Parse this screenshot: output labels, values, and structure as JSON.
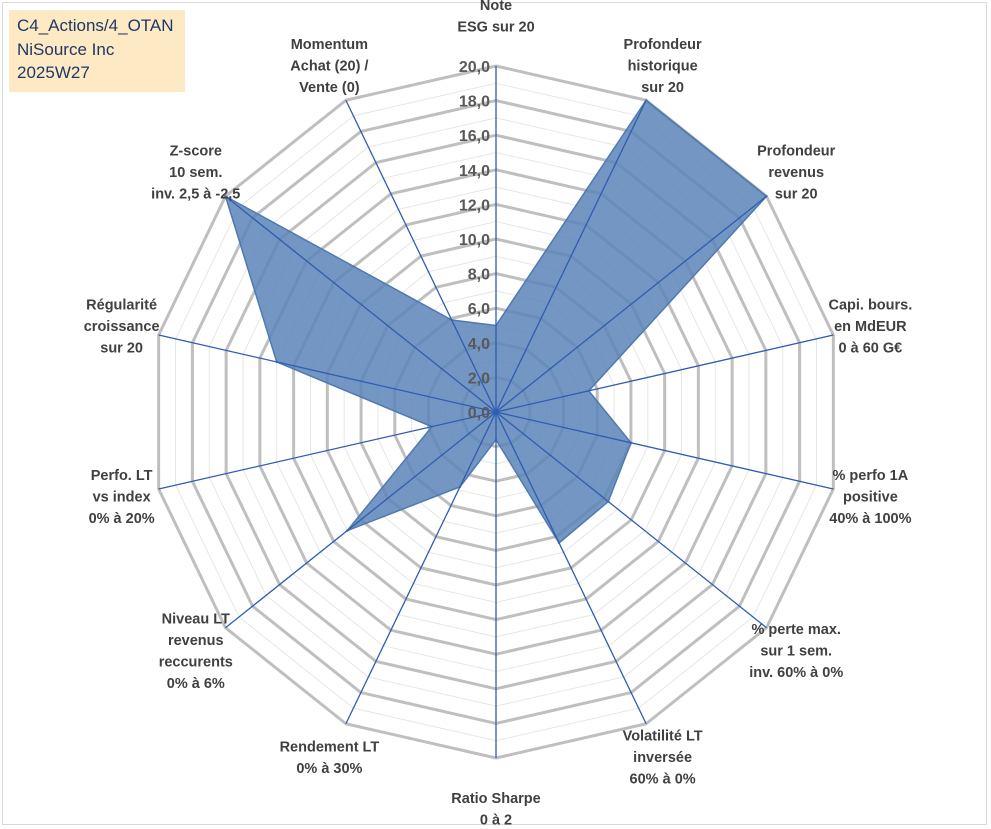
{
  "info_box": {
    "line1": "C4_Actions/4_OTAN",
    "line2": "NiSource Inc",
    "line3": "2025W27"
  },
  "colors": {
    "series_fill": "#5b84b8",
    "series_stroke": "#4f7ab0",
    "spokes": "#2f5db0",
    "grid_major": "#bfbfbf",
    "grid_minor": "#e6e6e6",
    "info_bg": "#fde9c4",
    "info_text": "#1f3864"
  },
  "chart_data": {
    "type": "radar",
    "title": "",
    "rmin": 0,
    "rmax": 20,
    "major_step": 2,
    "minor_step": 1,
    "tick_labels": [
      "0,0",
      "2,0",
      "4,0",
      "6,0",
      "8,0",
      "10,0",
      "12,0",
      "14,0",
      "16,0",
      "18,0",
      "20,0"
    ],
    "grid": true,
    "legend": "none",
    "axes": [
      {
        "label": [
          "Note",
          "ESG sur 20"
        ]
      },
      {
        "label": [
          "Profondeur",
          "historique",
          "sur 20"
        ]
      },
      {
        "label": [
          "Profondeur",
          "revenus",
          "sur 20"
        ]
      },
      {
        "label": [
          "Capi. bours.",
          "en MdEUR",
          "0 à 60 G€"
        ]
      },
      {
        "label": [
          "% perfo 1A",
          "positive",
          "40% à 100%"
        ]
      },
      {
        "label": [
          "% perte max.",
          "sur 1 sem.",
          "inv. 60% à 0%"
        ]
      },
      {
        "label": [
          "Volatilité LT",
          "inversée",
          "60% à 0%"
        ]
      },
      {
        "label": [
          "Ratio Sharpe",
          "0 à 2"
        ]
      },
      {
        "label": [
          "Rendement LT",
          "0% à 30%"
        ]
      },
      {
        "label": [
          "Niveau LT",
          "revenus",
          "reccurents",
          "0% à 6%"
        ]
      },
      {
        "label": [
          "Perfo. LT",
          "vs index",
          "0% à 20%"
        ]
      },
      {
        "label": [
          "Régularité",
          "croissance",
          "sur 20"
        ]
      },
      {
        "label": [
          "Z-score",
          "10 sem.",
          "inv. 2,5 à -2,5"
        ]
      },
      {
        "label": [
          "Momentum",
          "Achat (20) /",
          "Vente (0)"
        ]
      }
    ],
    "series": [
      {
        "values": [
          5.0,
          20.0,
          20.0,
          5.5,
          8.0,
          8.3,
          8.4,
          1.6,
          4.8,
          11.0,
          3.8,
          13.0,
          20.0,
          5.9
        ]
      }
    ]
  }
}
